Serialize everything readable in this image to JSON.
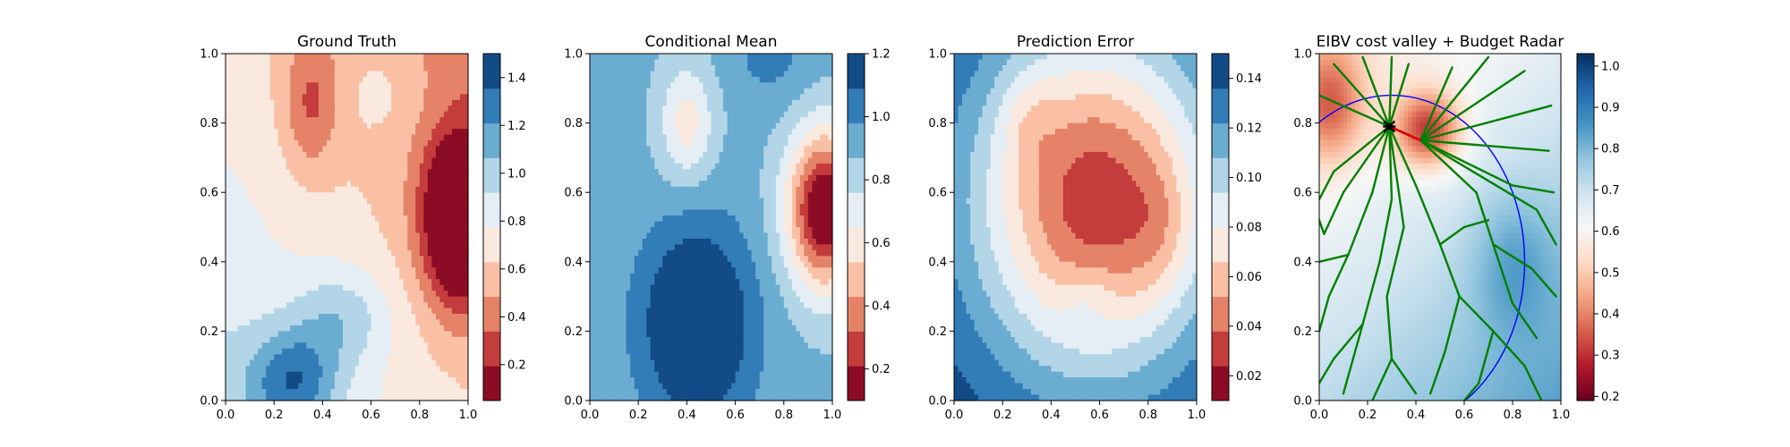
{
  "chart_data": [
    {
      "type": "heatmap",
      "title": "Ground Truth",
      "xlim": [
        0.0,
        1.0
      ],
      "ylim": [
        0.0,
        1.0
      ],
      "xticks": [
        "0.0",
        "0.2",
        "0.4",
        "0.6",
        "0.8",
        "1.0"
      ],
      "yticks": [
        "0.0",
        "0.2",
        "0.4",
        "0.6",
        "0.8",
        "1.0"
      ],
      "colormap": "RdBu",
      "colorbar": {
        "range": [
          0.05,
          1.5
        ],
        "ticks": [
          0.2,
          0.4,
          0.6,
          0.8,
          1.0,
          1.2,
          1.4
        ],
        "tick_labels": [
          "0.2",
          "0.4",
          "0.6",
          "0.8",
          "1.0",
          "1.2",
          "1.4"
        ],
        "levels": 10
      },
      "field": {
        "base": 0.95,
        "trend": {
          "x": -0.3,
          "y": -0.25
        },
        "bumps": [
          {
            "x": 0.97,
            "y": 0.52,
            "amp": -0.95,
            "sx": 0.11,
            "sy": 0.17
          },
          {
            "x": 0.35,
            "y": 0.85,
            "amp": -0.32,
            "sx": 0.08,
            "sy": 0.14
          },
          {
            "x": 0.28,
            "y": 0.06,
            "amp": 0.5,
            "sx": 0.13,
            "sy": 0.1
          },
          {
            "x": 0.48,
            "y": 0.24,
            "amp": 0.28,
            "sx": 0.14,
            "sy": 0.1
          },
          {
            "x": 0.65,
            "y": 0.9,
            "amp": 0.12,
            "sx": 0.12,
            "sy": 0.1
          }
        ]
      }
    },
    {
      "type": "heatmap",
      "title": "Conditional Mean",
      "xlim": [
        0.0,
        1.0
      ],
      "ylim": [
        0.0,
        1.0
      ],
      "xticks": [
        "0.0",
        "0.2",
        "0.4",
        "0.6",
        "0.8",
        "1.0"
      ],
      "yticks": [
        "0.0",
        "0.2",
        "0.4",
        "0.6",
        "0.8",
        "1.0"
      ],
      "colormap": "RdBu",
      "colorbar": {
        "range": [
          0.1,
          1.2
        ],
        "ticks": [
          0.2,
          0.4,
          0.6,
          0.8,
          1.0,
          1.2
        ],
        "tick_labels": [
          "0.2",
          "0.4",
          "0.6",
          "0.8",
          "1.0",
          "1.2"
        ],
        "levels": 10
      },
      "field": {
        "base": 0.9,
        "trend": {
          "x": 0.0,
          "y": 0.0
        },
        "bumps": [
          {
            "x": 0.97,
            "y": 0.55,
            "amp": -0.85,
            "sx": 0.11,
            "sy": 0.16
          },
          {
            "x": 0.4,
            "y": 0.8,
            "amp": -0.3,
            "sx": 0.08,
            "sy": 0.12
          },
          {
            "x": 0.44,
            "y": 0.22,
            "amp": 0.42,
            "sx": 0.16,
            "sy": 0.2
          },
          {
            "x": 0.75,
            "y": 1.0,
            "amp": 0.12,
            "sx": 0.12,
            "sy": 0.1
          }
        ]
      }
    },
    {
      "type": "heatmap",
      "title": "Prediction Error",
      "xlim": [
        0.0,
        1.0
      ],
      "ylim": [
        0.0,
        1.0
      ],
      "xticks": [
        "0.0",
        "0.2",
        "0.4",
        "0.6",
        "0.8",
        "1.0"
      ],
      "yticks": [
        "0.0",
        "0.2",
        "0.4",
        "0.6",
        "0.8",
        "1.0"
      ],
      "colormap": "RdBu",
      "colorbar": {
        "range": [
          0.01,
          0.15
        ],
        "ticks": [
          0.02,
          0.04,
          0.06,
          0.08,
          0.1,
          0.12,
          0.14
        ],
        "tick_labels": [
          "0.02",
          "0.04",
          "0.06",
          "0.08",
          "0.10",
          "0.12",
          "0.14"
        ],
        "levels": 10
      },
      "field": {
        "base": 0.15,
        "trend": {
          "x": 0.0,
          "y": 0.0
        },
        "bumps": [
          {
            "x": 0.58,
            "y": 0.58,
            "amp": -0.12,
            "sx": 0.36,
            "sy": 0.36
          },
          {
            "x": 0.3,
            "y": 0.82,
            "amp": -0.015,
            "sx": 0.08,
            "sy": 0.1
          },
          {
            "x": 0.85,
            "y": 0.5,
            "amp": -0.015,
            "sx": 0.1,
            "sy": 0.14
          },
          {
            "x": 0.55,
            "y": 0.3,
            "amp": 0.015,
            "sx": 0.08,
            "sy": 0.06
          }
        ]
      }
    },
    {
      "type": "heatmap",
      "title": "EIBV cost valley + Budget Radar",
      "xlim": [
        0.0,
        1.0
      ],
      "ylim": [
        0.0,
        1.0
      ],
      "xticks": [
        "0.0",
        "0.2",
        "0.4",
        "0.6",
        "0.8",
        "1.0"
      ],
      "yticks": [
        "0.0",
        "0.2",
        "0.4",
        "0.6",
        "0.8",
        "1.0"
      ],
      "colormap": "RdBu",
      "colorbar": {
        "range": [
          0.19,
          1.03
        ],
        "ticks": [
          0.2,
          0.3,
          0.4,
          0.5,
          0.6,
          0.7,
          0.8,
          0.9,
          1.0
        ],
        "tick_labels": [
          "0.2",
          "0.3",
          "0.4",
          "0.5",
          "0.6",
          "0.7",
          "0.8",
          "0.9",
          "1.0"
        ],
        "levels": 0
      },
      "field": {
        "base": 0.72,
        "trend": {
          "x": 0.12,
          "y": -0.18
        },
        "bumps": [
          {
            "x": 0.45,
            "y": 0.78,
            "amp": -0.32,
            "sx": 0.1,
            "sy": 0.08
          },
          {
            "x": 0.05,
            "y": 0.85,
            "amp": -0.22,
            "sx": 0.1,
            "sy": 0.12
          },
          {
            "x": 0.8,
            "y": 0.4,
            "amp": 0.1,
            "sx": 0.12,
            "sy": 0.15
          }
        ]
      },
      "overlay": {
        "current_location": [
          0.29,
          0.79
        ],
        "next_location": [
          0.42,
          0.75
        ],
        "budget_ellipse": {
          "center": [
            0.3,
            0.4
          ],
          "rx": 0.55,
          "ry": 0.48
        },
        "tree_edges": [
          [
            [
              0.29,
              0.79
            ],
            [
              0.06,
              0.97
            ]
          ],
          [
            [
              0.29,
              0.79
            ],
            [
              0.18,
              0.99
            ]
          ],
          [
            [
              0.29,
              0.79
            ],
            [
              0.3,
              0.99
            ]
          ],
          [
            [
              0.29,
              0.79
            ],
            [
              0.37,
              0.97
            ]
          ],
          [
            [
              0.29,
              0.79
            ],
            [
              0.06,
              0.66
            ]
          ],
          [
            [
              0.29,
              0.79
            ],
            [
              0.0,
              0.88
            ]
          ],
          [
            [
              0.29,
              0.79
            ],
            [
              0.42,
              0.75
            ]
          ],
          [
            [
              0.29,
              0.79
            ],
            [
              0.1,
              0.6
            ]
          ],
          [
            [
              0.29,
              0.79
            ],
            [
              0.22,
              0.6
            ]
          ],
          [
            [
              0.29,
              0.79
            ],
            [
              0.3,
              0.58
            ]
          ],
          [
            [
              0.29,
              0.79
            ],
            [
              0.4,
              0.62
            ]
          ],
          [
            [
              0.29,
              0.79
            ],
            [
              0.35,
              0.5
            ]
          ],
          [
            [
              0.42,
              0.75
            ],
            [
              0.55,
              0.96
            ]
          ],
          [
            [
              0.42,
              0.75
            ],
            [
              0.7,
              0.99
            ]
          ],
          [
            [
              0.42,
              0.75
            ],
            [
              0.85,
              0.95
            ]
          ],
          [
            [
              0.42,
              0.75
            ],
            [
              0.96,
              0.85
            ]
          ],
          [
            [
              0.42,
              0.75
            ],
            [
              0.95,
              0.72
            ]
          ],
          [
            [
              0.42,
              0.75
            ],
            [
              0.8,
              0.62
            ]
          ],
          [
            [
              0.42,
              0.75
            ],
            [
              0.9,
              0.55
            ]
          ],
          [
            [
              0.42,
              0.75
            ],
            [
              0.65,
              0.6
            ]
          ],
          [
            [
              0.06,
              0.66
            ],
            [
              0.0,
              0.58
            ]
          ],
          [
            [
              0.1,
              0.6
            ],
            [
              0.02,
              0.48
            ]
          ],
          [
            [
              0.22,
              0.6
            ],
            [
              0.12,
              0.42
            ]
          ],
          [
            [
              0.3,
              0.58
            ],
            [
              0.25,
              0.4
            ]
          ],
          [
            [
              0.35,
              0.5
            ],
            [
              0.28,
              0.3
            ]
          ],
          [
            [
              0.4,
              0.62
            ],
            [
              0.5,
              0.45
            ]
          ],
          [
            [
              0.12,
              0.42
            ],
            [
              0.04,
              0.3
            ]
          ],
          [
            [
              0.25,
              0.4
            ],
            [
              0.18,
              0.22
            ]
          ],
          [
            [
              0.18,
              0.22
            ],
            [
              0.06,
              0.12
            ]
          ],
          [
            [
              0.18,
              0.22
            ],
            [
              0.1,
              0.02
            ]
          ],
          [
            [
              0.28,
              0.3
            ],
            [
              0.3,
              0.12
            ]
          ],
          [
            [
              0.3,
              0.12
            ],
            [
              0.22,
              0.0
            ]
          ],
          [
            [
              0.3,
              0.12
            ],
            [
              0.4,
              0.02
            ]
          ],
          [
            [
              0.5,
              0.45
            ],
            [
              0.58,
              0.3
            ]
          ],
          [
            [
              0.58,
              0.3
            ],
            [
              0.52,
              0.14
            ]
          ],
          [
            [
              0.52,
              0.14
            ],
            [
              0.46,
              0.02
            ]
          ],
          [
            [
              0.58,
              0.3
            ],
            [
              0.72,
              0.2
            ]
          ],
          [
            [
              0.72,
              0.2
            ],
            [
              0.66,
              0.05
            ]
          ],
          [
            [
              0.72,
              0.2
            ],
            [
              0.85,
              0.1
            ]
          ],
          [
            [
              0.65,
              0.6
            ],
            [
              0.72,
              0.45
            ]
          ],
          [
            [
              0.72,
              0.45
            ],
            [
              0.88,
              0.38
            ]
          ],
          [
            [
              0.88,
              0.38
            ],
            [
              0.98,
              0.3
            ]
          ],
          [
            [
              0.72,
              0.45
            ],
            [
              0.8,
              0.28
            ]
          ],
          [
            [
              0.8,
              0.28
            ],
            [
              0.9,
              0.18
            ]
          ],
          [
            [
              0.8,
              0.62
            ],
            [
              0.97,
              0.6
            ]
          ],
          [
            [
              0.9,
              0.55
            ],
            [
              0.98,
              0.45
            ]
          ],
          [
            [
              0.04,
              0.3
            ],
            [
              0.0,
              0.2
            ]
          ],
          [
            [
              0.12,
              0.42
            ],
            [
              0.0,
              0.4
            ]
          ],
          [
            [
              0.02,
              0.48
            ],
            [
              0.0,
              0.52
            ]
          ],
          [
            [
              0.06,
              0.12
            ],
            [
              0.0,
              0.05
            ]
          ],
          [
            [
              0.66,
              0.05
            ],
            [
              0.6,
              0.0
            ]
          ],
          [
            [
              0.85,
              0.1
            ],
            [
              0.92,
              0.0
            ]
          ],
          [
            [
              0.5,
              0.45
            ],
            [
              0.6,
              0.5
            ]
          ],
          [
            [
              0.6,
              0.5
            ],
            [
              0.7,
              0.52
            ]
          ]
        ]
      }
    }
  ]
}
